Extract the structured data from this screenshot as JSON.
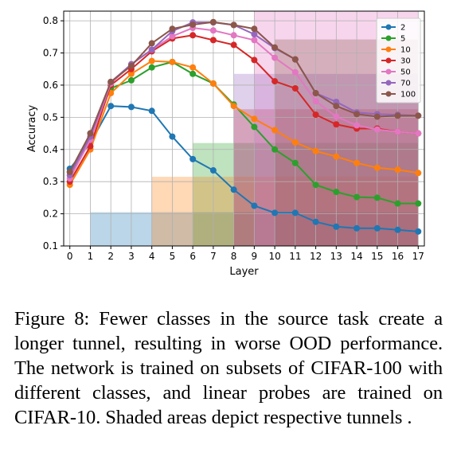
{
  "chart_data": {
    "type": "line",
    "xlabel": "Layer",
    "ylabel": "Accuracy",
    "x": [
      0,
      1,
      2,
      3,
      4,
      5,
      6,
      7,
      8,
      9,
      10,
      11,
      12,
      13,
      14,
      15,
      16,
      17
    ],
    "xlim": [
      -0.3,
      17.3
    ],
    "ylim": [
      0.1,
      0.83
    ],
    "yticks": [
      "0.1",
      "0.2",
      "0.3",
      "0.4",
      "0.5",
      "0.6",
      "0.7",
      "0.8"
    ],
    "grid": true,
    "legend_position": "top-right",
    "series": [
      {
        "name": "2",
        "color": "#1f77b4",
        "tunnel": [
          1,
          17
        ],
        "tunnel_top": 0.205,
        "values": [
          0.34,
          0.42,
          0.535,
          0.532,
          0.52,
          0.44,
          0.37,
          0.335,
          0.275,
          0.225,
          0.203,
          0.203,
          0.175,
          0.16,
          0.155,
          0.155,
          0.15,
          0.145
        ]
      },
      {
        "name": "5",
        "color": "#2ca02c",
        "tunnel": [
          6,
          17
        ],
        "tunnel_top": 0.42,
        "values": [
          0.33,
          0.45,
          0.59,
          0.615,
          0.655,
          0.672,
          0.635,
          0.605,
          0.54,
          0.47,
          0.4,
          0.358,
          0.29,
          0.268,
          0.252,
          0.25,
          0.232,
          0.232
        ]
      },
      {
        "name": "10",
        "color": "#ff7f0e",
        "tunnel": [
          4,
          17
        ],
        "tunnel_top": 0.315,
        "values": [
          0.29,
          0.4,
          0.575,
          0.635,
          0.675,
          0.672,
          0.655,
          0.605,
          0.535,
          0.495,
          0.46,
          0.422,
          0.395,
          0.378,
          0.358,
          0.343,
          0.337,
          0.327
        ]
      },
      {
        "name": "30",
        "color": "#d62728",
        "tunnel": [
          8,
          17
        ],
        "tunnel_top": 0.525,
        "values": [
          0.3,
          0.41,
          0.6,
          0.65,
          0.705,
          0.745,
          0.755,
          0.74,
          0.725,
          0.678,
          0.612,
          0.59,
          0.508,
          0.478,
          0.465,
          0.465,
          0.455,
          0.45
        ]
      },
      {
        "name": "50",
        "color": "#e377c2",
        "tunnel": [
          9,
          17
        ],
        "tunnel_top": 0.83,
        "values": [
          0.31,
          0.43,
          0.605,
          0.665,
          0.71,
          0.752,
          0.778,
          0.77,
          0.755,
          0.74,
          0.685,
          0.64,
          0.55,
          0.502,
          0.475,
          0.462,
          0.455,
          0.45
        ]
      },
      {
        "name": "70",
        "color": "#9467bd",
        "tunnel": [
          8,
          17
        ],
        "tunnel_top": 0.635,
        "values": [
          0.32,
          0.44,
          0.61,
          0.665,
          0.71,
          0.768,
          0.795,
          0.795,
          0.787,
          0.758,
          0.715,
          0.68,
          0.575,
          0.548,
          0.515,
          0.51,
          0.508,
          0.505
        ]
      },
      {
        "name": "100",
        "color": "#8c564b",
        "tunnel": [
          10,
          17
        ],
        "tunnel_top": 0.742,
        "values": [
          0.33,
          0.45,
          0.61,
          0.66,
          0.73,
          0.775,
          0.788,
          0.796,
          0.787,
          0.775,
          0.717,
          0.68,
          0.575,
          0.535,
          0.51,
          0.502,
          0.505,
          0.505
        ]
      }
    ]
  },
  "caption": {
    "label": "Figure 8:",
    "text": "Fewer classes in the source task create a longer tunnel, resulting in worse OOD performance. The network is trained on subsets of CIFAR-100 with different classes, and linear probes are trained on CIFAR-10. Shaded areas depict respective tunnels ."
  }
}
